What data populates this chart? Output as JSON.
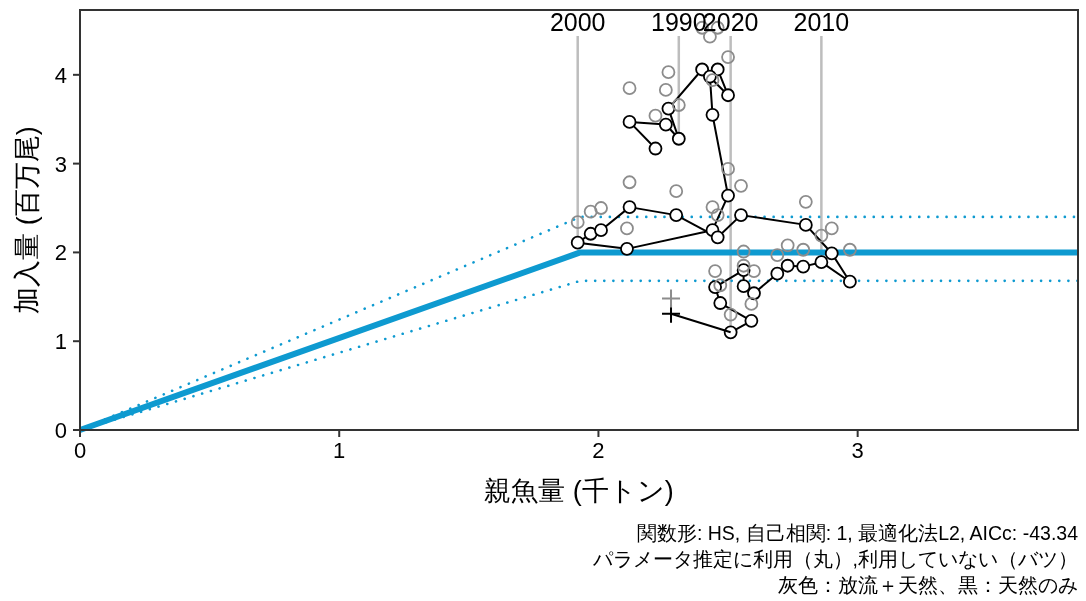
{
  "chart_data": {
    "type": "scatter",
    "xlabel": "親魚量 (千トン)",
    "ylabel": "加入量 (百万尾)",
    "xlim": [
      0,
      3.85
    ],
    "xticks": [
      0,
      1,
      2,
      3
    ],
    "ylim": [
      0,
      4.73
    ],
    "yticks": [
      0,
      1,
      2,
      3,
      4
    ],
    "grid": false,
    "annotations": [
      {
        "text": "2000",
        "x": 1.92,
        "y": 2.11
      },
      {
        "text": "1990",
        "x": 2.31,
        "y": 3.28
      },
      {
        "text": "2020",
        "x": 2.51,
        "y": 1.1
      },
      {
        "text": "2010",
        "x": 2.86,
        "y": 1.89
      },
      "関数形: HS, 自己相関: 1, 最適化法L2, AICc: -43.34",
      "パラメータ推定に利用（丸）,利用していない（バツ）",
      "灰色：放流＋天然、黒：天然のみ"
    ],
    "series": [
      {
        "type": "line",
        "color": "#0e9ad0",
        "x": [
          0,
          1.93,
          3.85
        ],
        "values": [
          0,
          2.0,
          2.0
        ],
        "marker": "none",
        "line_style": "solid"
      },
      {
        "type": "line",
        "color": "#0e9ad0",
        "x": [
          0,
          1.93,
          3.85
        ],
        "values": [
          0,
          2.4,
          2.4
        ],
        "marker": "none",
        "line_style": "dotted"
      },
      {
        "type": "line",
        "color": "#0e9ad0",
        "x": [
          0,
          1.93,
          3.85
        ],
        "values": [
          0,
          1.68,
          1.68
        ],
        "marker": "none",
        "line_style": "dotted"
      },
      {
        "type": "line",
        "color": "#000000",
        "marker": "circle",
        "line_style": "solid",
        "x": [
          2.22,
          2.12,
          2.26,
          2.31,
          2.27,
          2.4,
          2.5,
          2.46,
          2.43,
          2.44,
          2.5,
          2.44,
          2.11,
          1.92,
          1.97,
          2.01,
          2.12,
          2.3,
          2.46,
          2.55,
          2.8,
          2.9,
          2.97,
          2.86,
          2.79,
          2.73,
          2.69,
          2.6,
          2.56,
          2.56,
          2.45,
          2.47,
          2.59,
          2.51
        ],
        "values": [
          3.17,
          3.47,
          3.44,
          3.28,
          3.62,
          4.06,
          3.77,
          4.06,
          3.98,
          3.55,
          2.64,
          2.25,
          2.04,
          2.11,
          2.21,
          2.25,
          2.51,
          2.42,
          2.17,
          2.42,
          2.31,
          1.99,
          1.67,
          1.89,
          1.84,
          1.85,
          1.76,
          1.54,
          1.62,
          1.8,
          1.61,
          1.43,
          1.23,
          1.1
        ]
      },
      {
        "type": "line",
        "color": "#000000",
        "marker": "none",
        "line_style": "solid",
        "x": [
          2.51,
          2.28
        ],
        "values": [
          1.1,
          1.31
        ]
      },
      {
        "type": "scatter",
        "color": "#000000",
        "marker": "cross",
        "x": [
          2.28
        ],
        "values": [
          1.31
        ]
      },
      {
        "type": "scatter",
        "color": "#8c8c8c",
        "marker": "circle",
        "x": [
          2.22,
          2.12,
          2.26,
          2.31,
          2.27,
          2.4,
          2.5,
          2.46,
          2.43,
          2.44,
          2.5,
          2.44,
          2.11,
          1.92,
          1.97,
          2.01,
          2.12,
          2.3,
          2.46,
          2.55,
          2.8,
          2.9,
          2.97,
          2.86,
          2.79,
          2.73,
          2.69,
          2.6,
          2.56,
          2.56,
          2.45,
          2.47,
          2.59,
          2.51
        ],
        "values": [
          3.54,
          3.85,
          3.83,
          3.66,
          4.03,
          4.53,
          4.2,
          4.53,
          4.43,
          3.94,
          2.94,
          2.51,
          2.27,
          2.34,
          2.46,
          2.5,
          2.79,
          2.69,
          2.42,
          2.75,
          2.57,
          2.27,
          2.03,
          2.19,
          2.03,
          2.08,
          1.97,
          1.79,
          1.85,
          2.01,
          1.79,
          1.63,
          1.42,
          1.3
        ]
      },
      {
        "type": "scatter",
        "color": "#8c8c8c",
        "marker": "cross",
        "x": [
          2.28
        ],
        "values": [
          1.48
        ]
      }
    ]
  }
}
